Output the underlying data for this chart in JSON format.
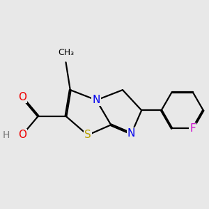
{
  "background_color": "#e8e8e8",
  "atom_colors": {
    "S": "#b8a000",
    "N": "#0000ee",
    "O": "#ee0000",
    "F": "#cc00cc",
    "C": "#000000",
    "H": "#777777"
  },
  "bond_color": "#000000",
  "bond_width": 1.6,
  "figsize": [
    3.0,
    3.0
  ],
  "dpi": 100
}
